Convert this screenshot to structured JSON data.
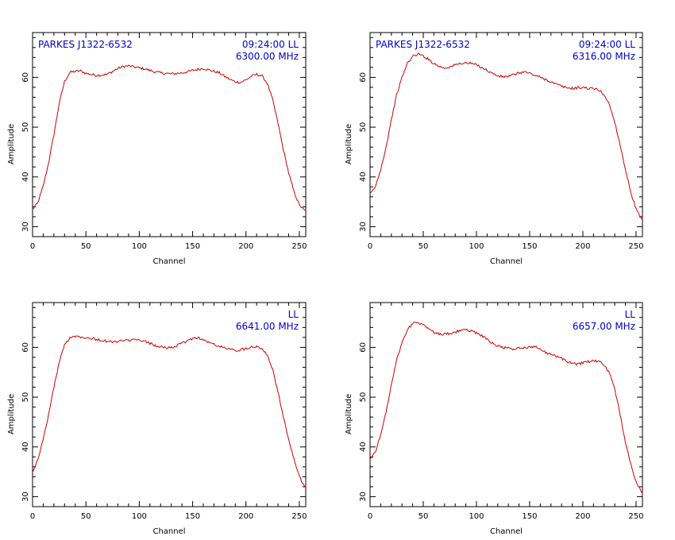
{
  "colors": {
    "trace": "#cc0000",
    "info_text": "#0000cc",
    "axes": "#000000"
  },
  "chart_data": [
    {
      "type": "line",
      "xlabel": "Channel",
      "ylabel": "Amplitude",
      "xlim": [
        0,
        256
      ],
      "ylim": [
        28,
        69
      ],
      "xticks": [
        "0",
        "50",
        "100",
        "150",
        "200",
        "250"
      ],
      "yticks": [
        "30",
        "40",
        "50",
        "60"
      ],
      "info_left": "PARKES J1322-6532",
      "info_right_1": "09:24:00  LL",
      "info_right_2": "6300.00 MHz",
      "series": [
        {
          "points": [
            [
              0,
              33.5
            ],
            [
              5,
              34.8
            ],
            [
              10,
              38.2
            ],
            [
              15,
              42.8
            ],
            [
              20,
              48.5
            ],
            [
              25,
              54.8
            ],
            [
              30,
              59.2
            ],
            [
              35,
              61.0
            ],
            [
              40,
              61.2
            ],
            [
              45,
              61.3
            ],
            [
              50,
              60.8
            ],
            [
              55,
              60.6
            ],
            [
              60,
              60.4
            ],
            [
              65,
              60.5
            ],
            [
              70,
              60.6
            ],
            [
              75,
              61.2
            ],
            [
              80,
              61.8
            ],
            [
              85,
              62.2
            ],
            [
              90,
              62.3
            ],
            [
              95,
              62.1
            ],
            [
              100,
              61.9
            ],
            [
              105,
              61.7
            ],
            [
              110,
              61.4
            ],
            [
              115,
              61.1
            ],
            [
              120,
              60.9
            ],
            [
              125,
              60.8
            ],
            [
              130,
              60.7
            ],
            [
              135,
              60.8
            ],
            [
              140,
              60.9
            ],
            [
              145,
              61.1
            ],
            [
              150,
              61.4
            ],
            [
              155,
              61.6
            ],
            [
              160,
              61.8
            ],
            [
              165,
              61.5
            ],
            [
              170,
              61.2
            ],
            [
              175,
              60.9
            ],
            [
              180,
              60.2
            ],
            [
              185,
              59.6
            ],
            [
              190,
              59.1
            ],
            [
              195,
              59.0
            ],
            [
              200,
              59.5
            ],
            [
              205,
              60.2
            ],
            [
              210,
              60.6
            ],
            [
              215,
              60.3
            ],
            [
              220,
              58.8
            ],
            [
              225,
              55.5
            ],
            [
              230,
              50.8
            ],
            [
              235,
              45.5
            ],
            [
              240,
              40.8
            ],
            [
              245,
              37.0
            ],
            [
              250,
              34.4
            ],
            [
              255,
              33.2
            ]
          ]
        }
      ]
    },
    {
      "type": "line",
      "xlabel": "Channel",
      "ylabel": "Amplitude",
      "xlim": [
        0,
        256
      ],
      "ylim": [
        28,
        69
      ],
      "xticks": [
        "0",
        "50",
        "100",
        "150",
        "200",
        "250"
      ],
      "yticks": [
        "30",
        "40",
        "50",
        "60"
      ],
      "info_left": "PARKES J1322-6532",
      "info_right_1": "09:24:00  LL",
      "info_right_2": "6316.00 MHz",
      "series": [
        {
          "points": [
            [
              0,
              36.5
            ],
            [
              5,
              38.0
            ],
            [
              10,
              41.5
            ],
            [
              15,
              46.0
            ],
            [
              20,
              51.5
            ],
            [
              25,
              56.5
            ],
            [
              30,
              60.0
            ],
            [
              35,
              62.8
            ],
            [
              40,
              64.2
            ],
            [
              45,
              64.7
            ],
            [
              50,
              64.3
            ],
            [
              55,
              63.6
            ],
            [
              60,
              62.8
            ],
            [
              65,
              62.2
            ],
            [
              70,
              61.9
            ],
            [
              75,
              62.1
            ],
            [
              80,
              62.5
            ],
            [
              85,
              62.8
            ],
            [
              90,
              62.9
            ],
            [
              95,
              62.8
            ],
            [
              100,
              62.5
            ],
            [
              105,
              62.0
            ],
            [
              110,
              61.4
            ],
            [
              115,
              60.8
            ],
            [
              120,
              60.3
            ],
            [
              125,
              60.1
            ],
            [
              130,
              60.2
            ],
            [
              135,
              60.5
            ],
            [
              140,
              60.9
            ],
            [
              145,
              61.1
            ],
            [
              150,
              60.8
            ],
            [
              155,
              60.4
            ],
            [
              160,
              60.0
            ],
            [
              165,
              59.6
            ],
            [
              170,
              59.1
            ],
            [
              175,
              58.6
            ],
            [
              180,
              58.2
            ],
            [
              185,
              57.9
            ],
            [
              190,
              57.8
            ],
            [
              195,
              57.9
            ],
            [
              200,
              58.0
            ],
            [
              205,
              57.8
            ],
            [
              210,
              57.7
            ],
            [
              215,
              57.5
            ],
            [
              220,
              56.5
            ],
            [
              225,
              54.5
            ],
            [
              230,
              51.0
            ],
            [
              235,
              46.5
            ],
            [
              240,
              41.5
            ],
            [
              245,
              37.0
            ],
            [
              250,
              33.5
            ],
            [
              255,
              31.5
            ]
          ]
        }
      ]
    },
    {
      "type": "line",
      "xlabel": "Channel",
      "ylabel": "Amplitude",
      "xlim": [
        0,
        256
      ],
      "ylim": [
        28,
        69
      ],
      "xticks": [
        "0",
        "50",
        "100",
        "150",
        "200",
        "250"
      ],
      "yticks": [
        "30",
        "40",
        "50",
        "60"
      ],
      "info_left": "",
      "info_right_1": "LL",
      "info_right_2": "6641.00 MHz",
      "series": [
        {
          "points": [
            [
              0,
              35.0
            ],
            [
              5,
              37.5
            ],
            [
              10,
              41.5
            ],
            [
              15,
              46.5
            ],
            [
              20,
              52.0
            ],
            [
              25,
              57.0
            ],
            [
              30,
              60.5
            ],
            [
              35,
              62.0
            ],
            [
              40,
              62.3
            ],
            [
              45,
              62.1
            ],
            [
              50,
              62.0
            ],
            [
              55,
              61.8
            ],
            [
              60,
              61.6
            ],
            [
              65,
              61.4
            ],
            [
              70,
              61.2
            ],
            [
              75,
              61.1
            ],
            [
              80,
              61.2
            ],
            [
              85,
              61.3
            ],
            [
              90,
              61.4
            ],
            [
              95,
              61.5
            ],
            [
              100,
              61.4
            ],
            [
              105,
              61.2
            ],
            [
              110,
              60.8
            ],
            [
              115,
              60.4
            ],
            [
              120,
              60.1
            ],
            [
              125,
              59.9
            ],
            [
              130,
              60.0
            ],
            [
              135,
              60.3
            ],
            [
              140,
              60.8
            ],
            [
              145,
              61.3
            ],
            [
              150,
              61.8
            ],
            [
              155,
              62.0
            ],
            [
              160,
              61.5
            ],
            [
              165,
              61.0
            ],
            [
              170,
              60.6
            ],
            [
              175,
              60.2
            ],
            [
              180,
              59.9
            ],
            [
              185,
              59.6
            ],
            [
              190,
              59.4
            ],
            [
              195,
              59.5
            ],
            [
              200,
              59.8
            ],
            [
              205,
              60.1
            ],
            [
              210,
              60.2
            ],
            [
              215,
              59.8
            ],
            [
              220,
              58.5
            ],
            [
              225,
              55.5
            ],
            [
              230,
              51.0
            ],
            [
              235,
              46.0
            ],
            [
              240,
              41.5
            ],
            [
              245,
              37.5
            ],
            [
              250,
              34.0
            ],
            [
              255,
              32.0
            ]
          ]
        }
      ]
    },
    {
      "type": "line",
      "xlabel": "Channel",
      "ylabel": "Amplitude",
      "xlim": [
        0,
        256
      ],
      "ylim": [
        28,
        69
      ],
      "xticks": [
        "0",
        "50",
        "100",
        "150",
        "200",
        "250"
      ],
      "yticks": [
        "30",
        "40",
        "50",
        "60"
      ],
      "info_left": "",
      "info_right_1": "LL",
      "info_right_2": "6657.00 MHz",
      "series": [
        {
          "points": [
            [
              0,
              37.5
            ],
            [
              5,
              39.0
            ],
            [
              10,
              42.5
            ],
            [
              15,
              47.0
            ],
            [
              20,
              52.5
            ],
            [
              25,
              57.5
            ],
            [
              30,
              61.0
            ],
            [
              35,
              63.5
            ],
            [
              40,
              64.8
            ],
            [
              45,
              65.0
            ],
            [
              50,
              64.5
            ],
            [
              55,
              63.8
            ],
            [
              60,
              63.1
            ],
            [
              65,
              62.7
            ],
            [
              70,
              62.6
            ],
            [
              75,
              62.8
            ],
            [
              80,
              63.1
            ],
            [
              85,
              63.4
            ],
            [
              90,
              63.5
            ],
            [
              95,
              63.3
            ],
            [
              100,
              62.9
            ],
            [
              105,
              62.4
            ],
            [
              110,
              61.6
            ],
            [
              115,
              60.8
            ],
            [
              120,
              60.3
            ],
            [
              125,
              60.0
            ],
            [
              130,
              59.8
            ],
            [
              135,
              59.7
            ],
            [
              140,
              59.8
            ],
            [
              145,
              59.9
            ],
            [
              150,
              60.1
            ],
            [
              155,
              60.2
            ],
            [
              160,
              59.6
            ],
            [
              165,
              59.0
            ],
            [
              170,
              58.6
            ],
            [
              175,
              58.2
            ],
            [
              180,
              57.8
            ],
            [
              185,
              57.2
            ],
            [
              190,
              56.7
            ],
            [
              195,
              56.6
            ],
            [
              200,
              56.9
            ],
            [
              205,
              57.1
            ],
            [
              210,
              57.3
            ],
            [
              215,
              57.2
            ],
            [
              220,
              56.5
            ],
            [
              225,
              54.8
            ],
            [
              230,
              51.5
            ],
            [
              235,
              46.5
            ],
            [
              240,
              41.0
            ],
            [
              245,
              36.5
            ],
            [
              250,
              33.0
            ],
            [
              255,
              31.0
            ]
          ]
        }
      ]
    }
  ]
}
